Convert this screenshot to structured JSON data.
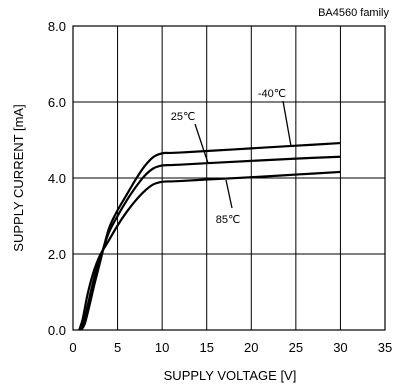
{
  "chart_data": {
    "type": "line",
    "family_label": "BA4560  family",
    "xlabel": "SUPPLY VOLTAGE [V]",
    "ylabel": "SUPPLY CURRENT [mA]",
    "xlim": [
      0,
      35
    ],
    "ylim": [
      0,
      8
    ],
    "x_ticks": [
      0,
      5,
      10,
      15,
      20,
      25,
      30,
      35
    ],
    "y_ticks": [
      0,
      2,
      4,
      6,
      8
    ],
    "y_tick_labels": [
      "0.0",
      "2.0",
      "4.0",
      "6.0",
      "8.0"
    ],
    "x_tick_labels": [
      "0",
      "5",
      "10",
      "15",
      "20",
      "25",
      "30",
      "35"
    ],
    "grid": true,
    "line_color": "#000000",
    "series": [
      {
        "name": "-40℃",
        "x": [
          0.9,
          1.3,
          1.8,
          2.4,
          3.0,
          4.0,
          5.0,
          6.0,
          7.0,
          8.0,
          9.0,
          10.0,
          11.0,
          12.0,
          15.0,
          20.0,
          25.0,
          30.0
        ],
        "y": [
          0.0,
          0.15,
          0.6,
          1.2,
          1.75,
          2.65,
          3.15,
          3.55,
          3.95,
          4.3,
          4.55,
          4.65,
          4.66,
          4.67,
          4.71,
          4.78,
          4.85,
          4.92
        ]
      },
      {
        "name": "25℃",
        "x": [
          0.8,
          1.2,
          1.8,
          2.4,
          3.0,
          4.0,
          5.0,
          6.0,
          7.0,
          8.0,
          9.0,
          10.0,
          11.0,
          12.0,
          15.0,
          20.0,
          25.0,
          30.0
        ],
        "y": [
          0.0,
          0.2,
          0.8,
          1.4,
          1.85,
          2.55,
          3.0,
          3.4,
          3.75,
          4.05,
          4.25,
          4.33,
          4.34,
          4.35,
          4.39,
          4.45,
          4.51,
          4.56
        ]
      },
      {
        "name": "85℃",
        "x": [
          0.7,
          1.1,
          1.6,
          2.2,
          3.0,
          4.0,
          5.0,
          6.0,
          7.0,
          8.0,
          9.0,
          10.0,
          11.0,
          12.0,
          15.0,
          20.0,
          25.0,
          30.0
        ],
        "y": [
          0.0,
          0.3,
          0.9,
          1.45,
          1.95,
          2.35,
          2.75,
          3.1,
          3.4,
          3.65,
          3.83,
          3.9,
          3.91,
          3.92,
          3.96,
          4.02,
          4.09,
          4.16
        ]
      }
    ]
  }
}
